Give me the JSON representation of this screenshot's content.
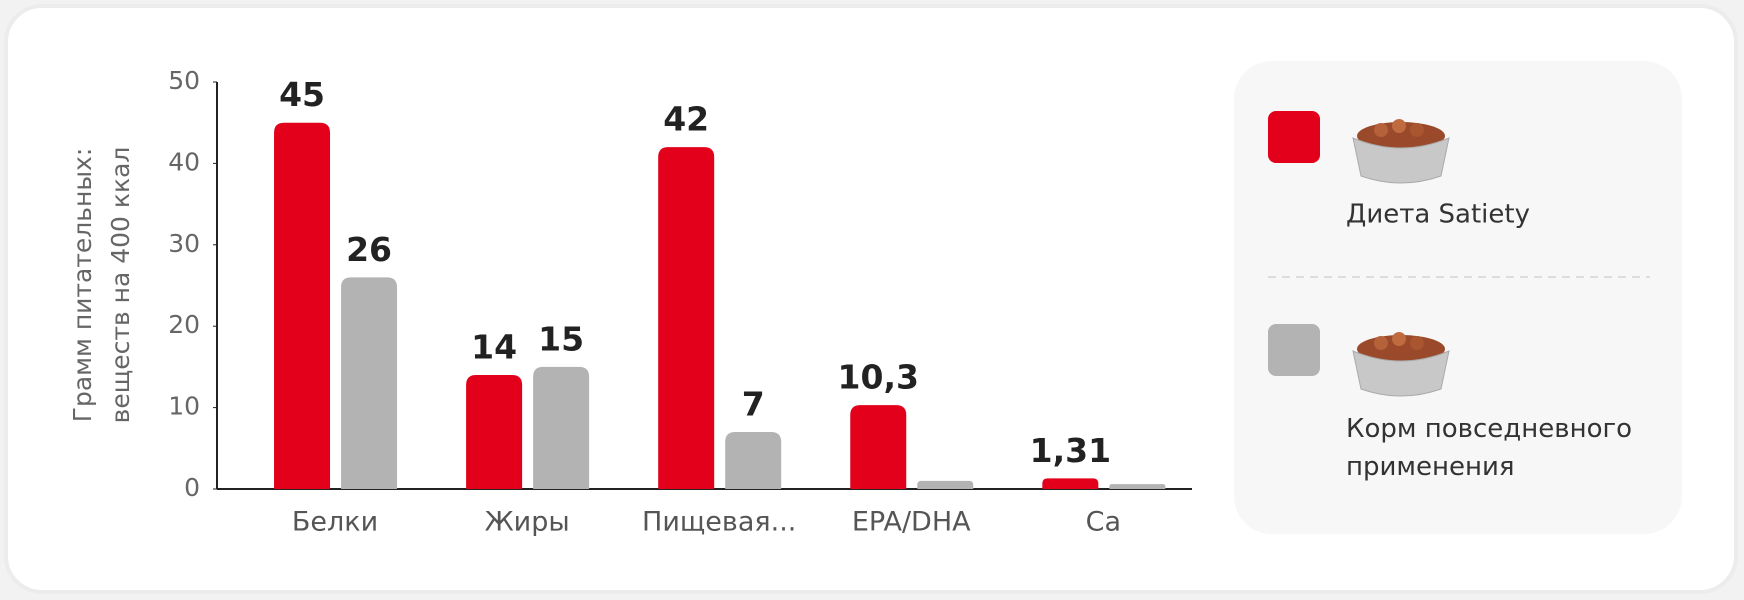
{
  "chart_data": {
    "type": "bar",
    "ylabel": [
      "Грамм питательных:",
      "веществ на 400 ккал"
    ],
    "categories": [
      "Белки",
      "Жиры",
      "Пищевая...",
      "EPA/DHA",
      "Ca"
    ],
    "series": [
      {
        "name": "Диета Satiety",
        "color": "#e2001a",
        "values": [
          45,
          14,
          42,
          10.3,
          1.31
        ],
        "value_labels": [
          "45",
          "14",
          "42",
          "10,3",
          "1,31"
        ]
      },
      {
        "name": "Корм повседневного применения",
        "color": "#b3b3b3",
        "values": [
          26,
          15,
          7,
          1,
          0.6
        ],
        "value_labels": [
          "26",
          "15",
          "7",
          null,
          null
        ]
      }
    ],
    "ylim": [
      0,
      50
    ],
    "yticks": [
      0,
      10,
      20,
      30,
      40,
      50
    ],
    "grid": false
  }
}
